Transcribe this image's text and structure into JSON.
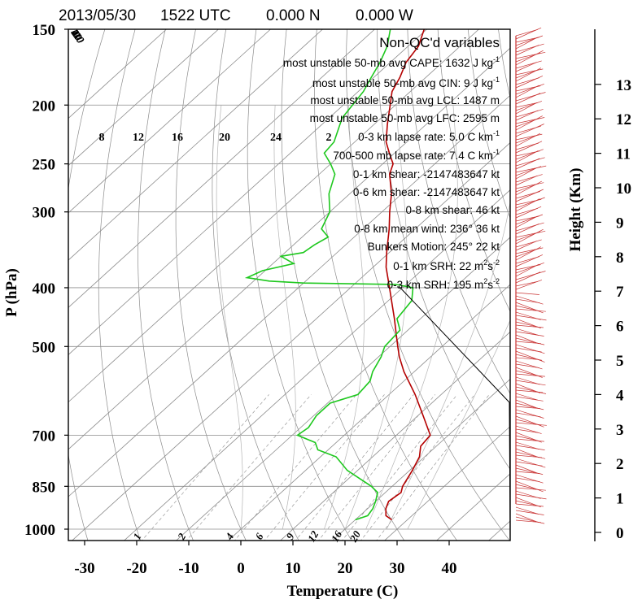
{
  "header": {
    "date": "2013/05/30",
    "time": "1522 UTC",
    "lat": "0.000 N",
    "lon": "0.000 W"
  },
  "info": {
    "heading": "Non-QC'd variables",
    "lines": [
      {
        "text": "most unstable 50-mb avg CAPE: 1632 J kg",
        "sup": "-1"
      },
      {
        "text": "most unstable 50-mb avg CIN:   9 J kg",
        "sup": "-1"
      },
      {
        "text": "most unstable 50-mb avg LCL: 1487 m",
        "sup": ""
      },
      {
        "text": "most unstable 50-mb avg LFC: 2595 m",
        "sup": ""
      },
      {
        "text": "0-3 km lapse rate:  5.0 C km",
        "sup": "-1"
      },
      {
        "text": "700-500 mb lapse rate:  7.4 C km",
        "sup": "-1"
      },
      {
        "text": "0-1 km shear: -2147483647 kt",
        "sup": ""
      },
      {
        "text": "0-6 km shear: -2147483647 kt",
        "sup": ""
      },
      {
        "text": "0-8 km shear: 46 kt",
        "sup": ""
      },
      {
        "text": "0-8 km mean wind: 236° 36 kt",
        "sup": ""
      },
      {
        "text": "Bunkers Motion: 245° 22 kt",
        "sup": ""
      },
      {
        "text": "0-1 km SRH:  22 m",
        "sup": "2",
        "tail": "s",
        "sup2": "-2"
      },
      {
        "text": "0-3 km SRH: 195 m",
        "sup": "2",
        "tail": "s",
        "sup2": "-2"
      }
    ]
  },
  "colors": {
    "temperature": "#b40000",
    "dewpoint": "#1ec81e",
    "wind": "#c83232",
    "grid": "#8c8c8c"
  },
  "chart_data": {
    "type": "line",
    "subtype": "skew-T log-P",
    "xlabel": "Temperature (C)",
    "ylabel": "P (hPa)",
    "y2label": "Height (Km)",
    "x_ticks": [
      -30,
      -20,
      -10,
      0,
      10,
      20,
      30,
      40
    ],
    "p_ticks": [
      150,
      200,
      250,
      300,
      400,
      500,
      700,
      850,
      1000
    ],
    "p_range": [
      150,
      1050
    ],
    "height_ticks": [
      0,
      1,
      2,
      3,
      4,
      5,
      6,
      7,
      8,
      9,
      10,
      11,
      12,
      13
    ],
    "isotherm_labels": [
      30,
      20,
      10,
      0,
      -10,
      -20,
      -30
    ],
    "mixing_ratio_labels": [
      1,
      2,
      4,
      6,
      9,
      12,
      16,
      20
    ],
    "mixing_ratio_upper_labels": [
      8,
      12,
      16,
      20,
      24,
      2
    ],
    "series": [
      {
        "name": "temperature",
        "p": [
          965,
          950,
          925,
          900,
          870,
          850,
          800,
          760,
          730,
          700,
          650,
          600,
          550,
          520,
          500,
          450,
          400,
          370,
          350,
          320,
          300,
          280,
          260,
          250,
          240,
          230,
          215,
          200,
          190,
          180,
          170,
          160,
          150
        ],
        "t": [
          27.0,
          25.0,
          23.5,
          22.5,
          23.0,
          22.0,
          20.5,
          19.0,
          17.0,
          16.5,
          11.0,
          5.0,
          -2.0,
          -6.0,
          -8.5,
          -15.0,
          -22.5,
          -27.5,
          -30.5,
          -35.0,
          -38.5,
          -42.0,
          -46.5,
          -48.0,
          -51.0,
          -54.0,
          -57.5,
          -61.0,
          -63.5,
          -65.0,
          -67.0,
          -68.0,
          -70.5
        ]
      },
      {
        "name": "dewpoint",
        "p": [
          965,
          950,
          925,
          900,
          870,
          850,
          800,
          760,
          740,
          720,
          700,
          680,
          650,
          620,
          600,
          570,
          550,
          520,
          500,
          470,
          450,
          420,
          400,
          395,
          393,
          390,
          385,
          375,
          365,
          355,
          350,
          340,
          330,
          320,
          300,
          280,
          260,
          250,
          240,
          230,
          210,
          190,
          180,
          170,
          160,
          150
        ],
        "t": [
          20.0,
          21.5,
          21.0,
          20.0,
          18.5,
          16.0,
          8.0,
          3.0,
          -2.0,
          -4.0,
          -9.0,
          -8.5,
          -9.5,
          -9.5,
          -6.0,
          -6.5,
          -8.0,
          -9.5,
          -11.0,
          -11.5,
          -14.5,
          -15.5,
          -18.0,
          -22.0,
          -40.0,
          -47.0,
          -52.0,
          -50.5,
          -46.0,
          -50.0,
          -46.5,
          -46.0,
          -45.0,
          -48.0,
          -50.0,
          -54.0,
          -57.0,
          -60.0,
          -63.5,
          -64.0,
          -67.5,
          -69.0,
          -70.5,
          -72.0,
          -74.0,
          -77.0
        ]
      }
    ]
  }
}
